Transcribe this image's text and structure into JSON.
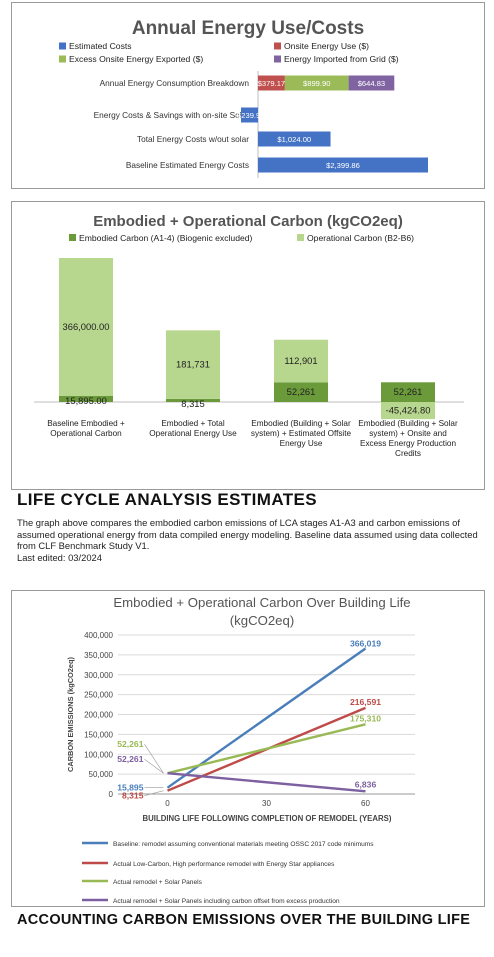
{
  "chart_data": [
    {
      "type": "bar",
      "orientation": "horizontal",
      "stacked": true,
      "title": "Annual Energy Use/Costs",
      "legend_position": "top",
      "categories": [
        "Annual Energy Consumption Breakdown",
        "Energy Costs & Savings with on-site Solar",
        "Total Energy Costs w/out solar",
        "Baseline Estimated Energy Costs"
      ],
      "series": [
        {
          "name": "Estimated Costs",
          "color": "#4472C4",
          "values": [
            null,
            -239.9,
            1024.0,
            2399.86
          ],
          "labels": [
            "",
            "-$239.90",
            "$1,024.00",
            "$2,399.86"
          ]
        },
        {
          "name": "Onsite Energy Use ($)",
          "color": "#C0504D",
          "values": [
            379.17,
            null,
            null,
            null
          ],
          "labels": [
            "$379.17",
            "",
            "",
            ""
          ]
        },
        {
          "name": "Excess Onsite Energy Exported ($)",
          "color": "#9BBB59",
          "values": [
            899.9,
            null,
            null,
            null
          ],
          "labels": [
            "$899.90",
            "",
            "",
            ""
          ]
        },
        {
          "name": "Energy Imported from Grid ($)",
          "color": "#8064A2",
          "values": [
            644.83,
            null,
            null,
            null
          ],
          "labels": [
            "$644.83",
            "",
            "",
            ""
          ]
        }
      ],
      "xlim": [
        -300,
        2450
      ]
    },
    {
      "type": "bar",
      "stacked": true,
      "title": "Embodied + Operational Carbon  (kgCO2eq)",
      "legend_position": "top",
      "categories": [
        "Baseline Embodied + Operational Carbon",
        "Embodied + Total Operational Energy Use",
        "Embodied (Building + Solar system) + Estimated Offsite Energy Use",
        "Embodied (Building + Solar system) + Onsite and Excess Energy Production Credits"
      ],
      "category_lines": [
        [
          "Baseline Embodied +",
          "Operational Carbon"
        ],
        [
          "Embodied + Total",
          "Operational Energy Use"
        ],
        [
          "Embodied (Building + Solar",
          "system) + Estimated Offsite",
          "Energy Use"
        ],
        [
          "Embodied (Building + Solar",
          "system) + Onsite and",
          "Excess Energy Production",
          "Credits"
        ]
      ],
      "series": [
        {
          "name": "Embodied Carbon (A1-4) (Biogenic excluded)",
          "color": "#6A9A3A",
          "values": [
            15895,
            8315,
            52261,
            52261
          ],
          "labels": [
            "15,895.00",
            "8,315",
            "52,261",
            "52,261"
          ]
        },
        {
          "name": "Operational Carbon (B2-B6)",
          "color": "#B7D68E",
          "values": [
            366000,
            181731,
            112901,
            -45424.8
          ],
          "labels": [
            "366,000.00",
            "181,731",
            "112,901",
            "-45,424.80"
          ]
        }
      ],
      "ylim": [
        -60000,
        390000
      ]
    },
    {
      "type": "line",
      "title_lines": [
        "Embodied + Operational Carbon Over Building Life",
        "(kgCO2eq)"
      ],
      "xlabel": "BUILDING LIFE FOLLOWING COMPLETION OF REMODEL (YEARS)",
      "ylabel": "CARBON EMISSIONS (kgCO2eq)",
      "x": [
        0,
        60
      ],
      "xticks": [
        0,
        30,
        60
      ],
      "xlim": [
        -15,
        75
      ],
      "ylim": [
        0,
        400000
      ],
      "yticks": [
        0,
        50000,
        100000,
        150000,
        200000,
        250000,
        300000,
        350000,
        400000
      ],
      "grid": true,
      "legend_position": "bottom",
      "series": [
        {
          "name": "Baseline: remodel assuming conventional materials meeting OSSC 2017 code minimums",
          "color": "#4A7EBB",
          "values": [
            15895,
            366019
          ],
          "start_label": "15,895",
          "end_label": "366,019"
        },
        {
          "name": "Actual Low-Carbon, High performance remodel with Energy Star appliances",
          "color": "#BE4B48",
          "values": [
            8315,
            216591
          ],
          "start_label": "8,315",
          "end_label": "216,591"
        },
        {
          "name": "Actual remodel + Solar Panels",
          "color": "#98B954",
          "values": [
            52261,
            175310
          ],
          "start_label": "52,261",
          "end_label": "175,310"
        },
        {
          "name": "Actual remodel + Solar Panels including carbon offset from excess production",
          "color": "#7D60A0",
          "values": [
            52261,
            6836
          ],
          "start_label": "52,261",
          "end_label": "6,836"
        }
      ]
    }
  ],
  "lca": {
    "heading": "LIFE CYCLE ANALYSIS ESTIMATES",
    "description": "The graph above compares the embodied carbon emissions of LCA stages A1-A3 and carbon emissions of assumed operational energy from data compiled energy modeling. Baseline data assumed using data collected from CLF Benchmark Study V1.",
    "last_edited": "Last edited: 03/2024"
  },
  "accounting": {
    "heading": "ACCOUNTING CARBON EMISSIONS OVER THE BUILDING LIFE"
  }
}
